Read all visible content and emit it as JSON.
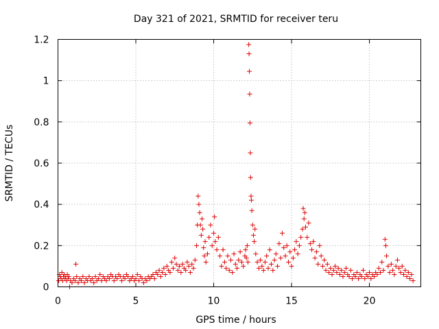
{
  "chart_data": {
    "type": "scatter",
    "title": "Day 321 of 2021, SRMTID for receiver teru",
    "xlabel": "GPS time / hours",
    "ylabel": "SRMTID / TECUs",
    "xlim": [
      0,
      23.3
    ],
    "ylim": [
      0,
      1.2
    ],
    "xticks": [
      0,
      5,
      10,
      15,
      20
    ],
    "xtick_labels": [
      "0",
      "5",
      "10",
      "15",
      "20"
    ],
    "yticks": [
      0,
      0.2,
      0.4,
      0.6,
      0.8,
      1.0,
      1.2
    ],
    "ytick_labels": [
      "0",
      "0.2",
      "0.4",
      "0.6",
      "0.8",
      "1",
      "1.2"
    ],
    "grid": true,
    "marker": "plus",
    "color": "#e00000",
    "series": [
      {
        "name": "SRMTID",
        "points": [
          [
            0.05,
            0.03
          ],
          [
            0.1,
            0.06
          ],
          [
            0.15,
            0.05
          ],
          [
            0.2,
            0.04
          ],
          [
            0.25,
            0.07
          ],
          [
            0.3,
            0.03
          ],
          [
            0.35,
            0.05
          ],
          [
            0.4,
            0.06
          ],
          [
            0.45,
            0.04
          ],
          [
            0.5,
            0.05
          ],
          [
            0.55,
            0.03
          ],
          [
            0.6,
            0.06
          ],
          [
            0.65,
            0.04
          ],
          [
            0.7,
            0.05
          ],
          [
            0.75,
            0.0
          ],
          [
            0.8,
            0.03
          ],
          [
            0.9,
            0.02
          ],
          [
            1.0,
            0.04
          ],
          [
            1.1,
            0.03
          ],
          [
            1.15,
            0.11
          ],
          [
            1.2,
            0.05
          ],
          [
            1.3,
            0.02
          ],
          [
            1.4,
            0.04
          ],
          [
            1.5,
            0.03
          ],
          [
            1.6,
            0.05
          ],
          [
            1.7,
            0.02
          ],
          [
            1.8,
            0.04
          ],
          [
            1.9,
            0.03
          ],
          [
            2.0,
            0.05
          ],
          [
            2.1,
            0.03
          ],
          [
            2.2,
            0.04
          ],
          [
            2.3,
            0.02
          ],
          [
            2.4,
            0.05
          ],
          [
            2.5,
            0.03
          ],
          [
            2.6,
            0.04
          ],
          [
            2.7,
            0.06
          ],
          [
            2.8,
            0.03
          ],
          [
            2.9,
            0.05
          ],
          [
            3.0,
            0.04
          ],
          [
            3.1,
            0.03
          ],
          [
            3.2,
            0.05
          ],
          [
            3.3,
            0.04
          ],
          [
            3.4,
            0.06
          ],
          [
            3.5,
            0.05
          ],
          [
            3.6,
            0.03
          ],
          [
            3.7,
            0.05
          ],
          [
            3.8,
            0.04
          ],
          [
            3.9,
            0.06
          ],
          [
            4.0,
            0.05
          ],
          [
            4.1,
            0.03
          ],
          [
            4.2,
            0.05
          ],
          [
            4.3,
            0.04
          ],
          [
            4.4,
            0.06
          ],
          [
            4.5,
            0.05
          ],
          [
            4.6,
            0.03
          ],
          [
            4.7,
            0.04
          ],
          [
            4.8,
            0.05
          ],
          [
            4.9,
            0.03
          ],
          [
            5.0,
            0.04
          ],
          [
            5.1,
            0.06
          ],
          [
            5.2,
            0.03
          ],
          [
            5.3,
            0.05
          ],
          [
            5.4,
            0.04
          ],
          [
            5.5,
            0.02
          ],
          [
            5.6,
            0.04
          ],
          [
            5.7,
            0.03
          ],
          [
            5.8,
            0.05
          ],
          [
            5.9,
            0.04
          ],
          [
            6.0,
            0.05
          ],
          [
            6.1,
            0.06
          ],
          [
            6.2,
            0.04
          ],
          [
            6.3,
            0.07
          ],
          [
            6.4,
            0.06
          ],
          [
            6.5,
            0.08
          ],
          [
            6.6,
            0.05
          ],
          [
            6.7,
            0.07
          ],
          [
            6.8,
            0.09
          ],
          [
            6.9,
            0.06
          ],
          [
            7.0,
            0.1
          ],
          [
            7.1,
            0.08
          ],
          [
            7.2,
            0.07
          ],
          [
            7.3,
            0.12
          ],
          [
            7.4,
            0.09
          ],
          [
            7.5,
            0.14
          ],
          [
            7.6,
            0.11
          ],
          [
            7.7,
            0.08
          ],
          [
            7.8,
            0.1
          ],
          [
            7.9,
            0.07
          ],
          [
            8.0,
            0.11
          ],
          [
            8.1,
            0.09
          ],
          [
            8.2,
            0.08
          ],
          [
            8.3,
            0.12
          ],
          [
            8.4,
            0.1
          ],
          [
            8.5,
            0.07
          ],
          [
            8.6,
            0.11
          ],
          [
            8.7,
            0.09
          ],
          [
            8.8,
            0.13
          ],
          [
            8.9,
            0.2
          ],
          [
            8.95,
            0.3
          ],
          [
            9.0,
            0.44
          ],
          [
            9.05,
            0.4
          ],
          [
            9.1,
            0.36
          ],
          [
            9.15,
            0.3
          ],
          [
            9.2,
            0.25
          ],
          [
            9.25,
            0.33
          ],
          [
            9.3,
            0.28
          ],
          [
            9.35,
            0.19
          ],
          [
            9.4,
            0.15
          ],
          [
            9.45,
            0.22
          ],
          [
            9.5,
            0.12
          ],
          [
            9.6,
            0.16
          ],
          [
            9.7,
            0.24
          ],
          [
            9.8,
            0.3
          ],
          [
            9.9,
            0.2
          ],
          [
            10.0,
            0.26
          ],
          [
            10.05,
            0.34
          ],
          [
            10.1,
            0.22
          ],
          [
            10.2,
            0.18
          ],
          [
            10.3,
            0.24
          ],
          [
            10.4,
            0.15
          ],
          [
            10.5,
            0.1
          ],
          [
            10.6,
            0.18
          ],
          [
            10.7,
            0.12
          ],
          [
            10.8,
            0.09
          ],
          [
            10.9,
            0.15
          ],
          [
            11.0,
            0.08
          ],
          [
            11.1,
            0.13
          ],
          [
            11.2,
            0.07
          ],
          [
            11.3,
            0.16
          ],
          [
            11.4,
            0.11
          ],
          [
            11.5,
            0.09
          ],
          [
            11.6,
            0.13
          ],
          [
            11.7,
            0.17
          ],
          [
            11.8,
            0.12
          ],
          [
            11.9,
            0.1
          ],
          [
            12.0,
            0.15
          ],
          [
            12.05,
            0.18
          ],
          [
            12.1,
            0.14
          ],
          [
            12.15,
            0.2
          ],
          [
            12.2,
            0.12
          ],
          [
            12.25,
            1.175
          ],
          [
            12.27,
            1.13
          ],
          [
            12.29,
            1.045
          ],
          [
            12.31,
            0.935
          ],
          [
            12.33,
            0.795
          ],
          [
            12.35,
            0.65
          ],
          [
            12.37,
            0.53
          ],
          [
            12.4,
            0.44
          ],
          [
            12.42,
            0.42
          ],
          [
            12.45,
            0.37
          ],
          [
            12.5,
            0.3
          ],
          [
            12.55,
            0.25
          ],
          [
            12.6,
            0.22
          ],
          [
            12.65,
            0.28
          ],
          [
            12.7,
            0.16
          ],
          [
            12.8,
            0.12
          ],
          [
            12.9,
            0.09
          ],
          [
            13.0,
            0.13
          ],
          [
            13.1,
            0.1
          ],
          [
            13.2,
            0.08
          ],
          [
            13.3,
            0.12
          ],
          [
            13.4,
            0.15
          ],
          [
            13.5,
            0.09
          ],
          [
            13.6,
            0.18
          ],
          [
            13.7,
            0.11
          ],
          [
            13.8,
            0.08
          ],
          [
            13.9,
            0.13
          ],
          [
            14.0,
            0.16
          ],
          [
            14.1,
            0.1
          ],
          [
            14.2,
            0.21
          ],
          [
            14.3,
            0.14
          ],
          [
            14.4,
            0.26
          ],
          [
            14.5,
            0.19
          ],
          [
            14.6,
            0.15
          ],
          [
            14.7,
            0.2
          ],
          [
            14.8,
            0.12
          ],
          [
            14.9,
            0.17
          ],
          [
            15.0,
            0.1
          ],
          [
            15.1,
            0.14
          ],
          [
            15.2,
            0.18
          ],
          [
            15.3,
            0.22
          ],
          [
            15.4,
            0.16
          ],
          [
            15.5,
            0.2
          ],
          [
            15.6,
            0.24
          ],
          [
            15.7,
            0.28
          ],
          [
            15.75,
            0.38
          ],
          [
            15.8,
            0.33
          ],
          [
            15.85,
            0.36
          ],
          [
            15.9,
            0.29
          ],
          [
            16.0,
            0.24
          ],
          [
            16.1,
            0.31
          ],
          [
            16.2,
            0.21
          ],
          [
            16.3,
            0.18
          ],
          [
            16.4,
            0.22
          ],
          [
            16.5,
            0.14
          ],
          [
            16.6,
            0.17
          ],
          [
            16.7,
            0.11
          ],
          [
            16.8,
            0.2
          ],
          [
            16.9,
            0.15
          ],
          [
            17.0,
            0.1
          ],
          [
            17.1,
            0.13
          ],
          [
            17.2,
            0.08
          ],
          [
            17.3,
            0.11
          ],
          [
            17.4,
            0.07
          ],
          [
            17.5,
            0.09
          ],
          [
            17.6,
            0.06
          ],
          [
            17.7,
            0.08
          ],
          [
            17.8,
            0.1
          ],
          [
            17.9,
            0.07
          ],
          [
            18.0,
            0.09
          ],
          [
            18.1,
            0.06
          ],
          [
            18.2,
            0.08
          ],
          [
            18.3,
            0.05
          ],
          [
            18.4,
            0.07
          ],
          [
            18.5,
            0.09
          ],
          [
            18.6,
            0.06
          ],
          [
            18.7,
            0.05
          ],
          [
            18.8,
            0.08
          ],
          [
            18.9,
            0.04
          ],
          [
            19.0,
            0.06
          ],
          [
            19.1,
            0.05
          ],
          [
            19.2,
            0.07
          ],
          [
            19.3,
            0.04
          ],
          [
            19.4,
            0.06
          ],
          [
            19.5,
            0.05
          ],
          [
            19.6,
            0.08
          ],
          [
            19.7,
            0.04
          ],
          [
            19.8,
            0.06
          ],
          [
            19.9,
            0.05
          ],
          [
            20.0,
            0.07
          ],
          [
            20.1,
            0.04
          ],
          [
            20.2,
            0.06
          ],
          [
            20.3,
            0.05
          ],
          [
            20.4,
            0.07
          ],
          [
            20.5,
            0.06
          ],
          [
            20.6,
            0.09
          ],
          [
            20.7,
            0.07
          ],
          [
            20.8,
            0.12
          ],
          [
            20.9,
            0.08
          ],
          [
            21.0,
            0.23
          ],
          [
            21.05,
            0.2
          ],
          [
            21.1,
            0.15
          ],
          [
            21.2,
            0.1
          ],
          [
            21.3,
            0.07
          ],
          [
            21.4,
            0.11
          ],
          [
            21.5,
            0.08
          ],
          [
            21.6,
            0.06
          ],
          [
            21.7,
            0.1
          ],
          [
            21.8,
            0.13
          ],
          [
            21.9,
            0.09
          ],
          [
            22.0,
            0.07
          ],
          [
            22.1,
            0.1
          ],
          [
            22.2,
            0.06
          ],
          [
            22.3,
            0.08
          ],
          [
            22.4,
            0.05
          ],
          [
            22.5,
            0.07
          ],
          [
            22.6,
            0.04
          ],
          [
            22.7,
            0.06
          ],
          [
            22.8,
            0.03
          ]
        ]
      }
    ]
  }
}
